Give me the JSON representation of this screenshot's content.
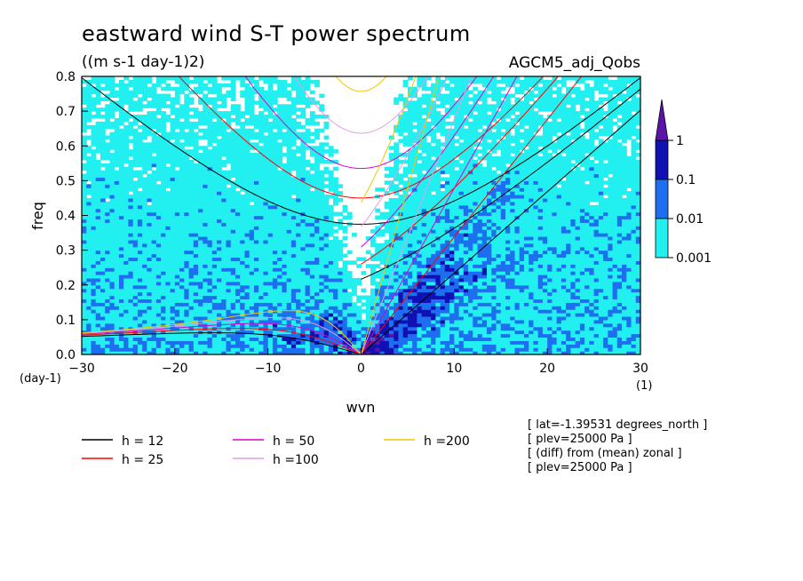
{
  "chart_data": {
    "type": "heatmap",
    "title": "eastward wind S-T power spectrum",
    "subtitle": "((m s-1 day-1)2)",
    "dataset_label": "AGCM5_adj_Qobs",
    "xlabel": "wvn",
    "ylabel": "freq",
    "x_unit": "(1)",
    "y_unit": "(day-1)",
    "xlim": [
      -30,
      30
    ],
    "ylim": [
      0,
      0.8
    ],
    "x_ticks": [
      "-30",
      "-20",
      "-10",
      "0",
      "10",
      "20",
      "30"
    ],
    "y_ticks": [
      "0.0",
      "0.1",
      "0.2",
      "0.3",
      "0.4",
      "0.5",
      "0.6",
      "0.7",
      "0.8"
    ],
    "colorbar": {
      "levels": [
        "0.001",
        "0.01",
        "0.1",
        "1"
      ],
      "colors": [
        "#ffffff",
        "#22f0f0",
        "#1e6ef0",
        "#1010b4",
        "#5a14aa"
      ]
    },
    "dispersion_curves": [
      {
        "name": "h = 12",
        "equivalent_depth": 12,
        "color": "#000000"
      },
      {
        "name": "h = 25",
        "equivalent_depth": 25,
        "color": "#ff0000"
      },
      {
        "name": "h = 50",
        "equivalent_depth": 50,
        "color": "#e000c8"
      },
      {
        "name": "h =100",
        "equivalent_depth": 100,
        "color": "#e69ae6"
      },
      {
        "name": "h =200",
        "equivalent_depth": 200,
        "color": "#f0c800"
      }
    ],
    "info_lines": [
      "[ lat=-1.39531 degrees_north ]",
      "[ plev=25000 Pa ]",
      "[ (diff) from (mean) zonal ]",
      "[ plev=25000 Pa ]"
    ]
  }
}
